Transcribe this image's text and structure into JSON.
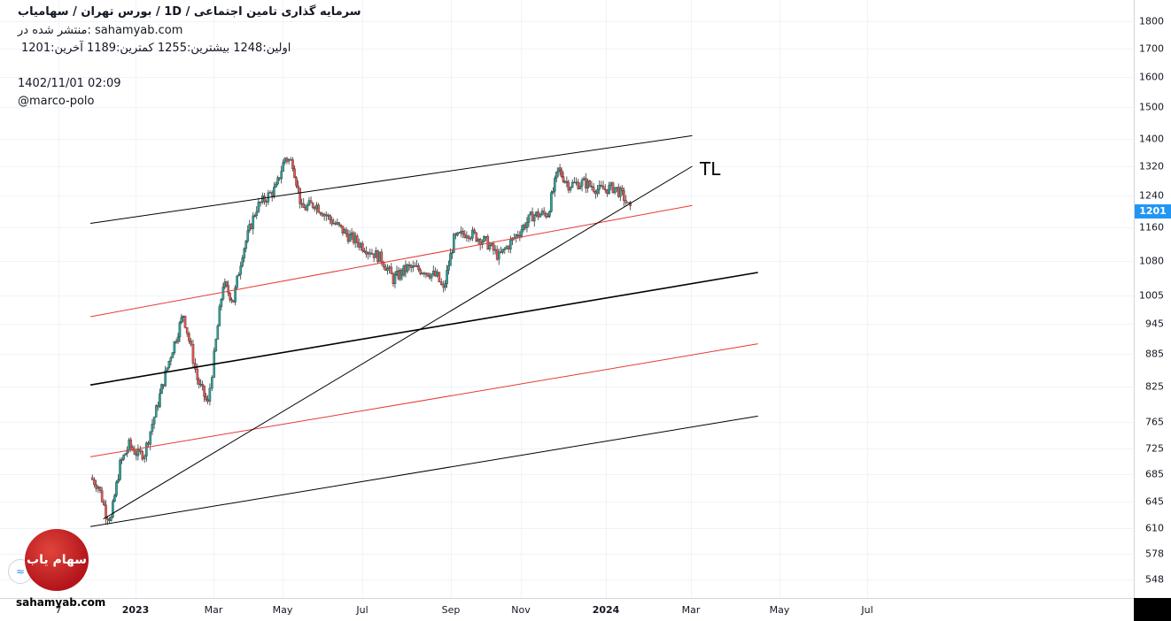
{
  "header": {
    "title": "سرمایه گذاری تامین اجتماعی /  1D  /  بورس تهران / سهامیاب",
    "source": "منتشر شده در: sahamyab.com",
    "ohlc": "اولین:1248  بیشترین:1255  کمترین:1189  آخرین:1201",
    "timestamp": "1402/11/01 02:09",
    "user": "@marco-polo"
  },
  "footer": {
    "site": "sahamyab.com",
    "logo_text": "سهام یاب",
    "logo_small_icon": "wave-icon"
  },
  "annotation": {
    "tl": "TL"
  },
  "colors": {
    "up": "#26a69a",
    "down": "#ef5350",
    "channel": "#000000",
    "mid_line": "#e53935",
    "price_tag": "#2196f3"
  },
  "chart_data": {
    "type": "candlestick",
    "title": "",
    "last_price": "1201",
    "y_ticks": [
      "1800",
      "1700",
      "1600",
      "1500",
      "1400",
      "1320",
      "1240",
      "1160",
      "1080",
      "1005",
      "945",
      "885",
      "825",
      "765",
      "725",
      "685",
      "645",
      "610",
      "578",
      "548"
    ],
    "x_ticks": [
      {
        "label": "7",
        "bold": false
      },
      {
        "label": "2023",
        "bold": true
      },
      {
        "label": "Mar",
        "bold": false
      },
      {
        "label": "May",
        "bold": false
      },
      {
        "label": "Jul",
        "bold": false
      },
      {
        "label": "Sep",
        "bold": false
      },
      {
        "label": "Nov",
        "bold": false
      },
      {
        "label": "2024",
        "bold": true
      },
      {
        "label": "Mar",
        "bold": false
      },
      {
        "label": "May",
        "bold": false
      },
      {
        "label": "Jul",
        "bold": false
      }
    ],
    "trendlines": [
      {
        "name": "channel-upper",
        "color": "black",
        "from": [
          "2022-11-27",
          1170
        ],
        "to": [
          "2024-03-08",
          1410
        ]
      },
      {
        "name": "channel-mid-red-upper",
        "color": "red",
        "from": [
          "2022-11-27",
          960
        ],
        "to": [
          "2024-03-08",
          1215
        ]
      },
      {
        "name": "channel-middle",
        "color": "black",
        "from": [
          "2022-11-27",
          828
        ],
        "to": [
          "2024-04-28",
          1055
        ]
      },
      {
        "name": "channel-mid-red-lower",
        "color": "red",
        "from": [
          "2022-11-27",
          712
        ],
        "to": [
          "2024-04-28",
          905
        ]
      },
      {
        "name": "channel-lower",
        "color": "black",
        "from": [
          "2022-11-27",
          612
        ],
        "to": [
          "2024-04-28",
          775
        ]
      },
      {
        "name": "TL",
        "color": "black",
        "from": [
          "2022-12-07",
          622
        ],
        "to": [
          "2024-03-08",
          1320
        ]
      }
    ],
    "price_path": [
      [
        "2022-11-27",
        680
      ],
      [
        "2022-12-03",
        668
      ],
      [
        "2022-12-09",
        630
      ],
      [
        "2022-12-13",
        622
      ],
      [
        "2022-12-20",
        700
      ],
      [
        "2022-12-27",
        730
      ],
      [
        "2023-01-03",
        715
      ],
      [
        "2023-01-08",
        718
      ],
      [
        "2023-01-17",
        785
      ],
      [
        "2023-01-27",
        872
      ],
      [
        "2023-02-03",
        930
      ],
      [
        "2023-02-07",
        965
      ],
      [
        "2023-02-13",
        895
      ],
      [
        "2023-02-18",
        838
      ],
      [
        "2023-02-26",
        795
      ],
      [
        "2023-03-03",
        880
      ],
      [
        "2023-03-10",
        1030
      ],
      [
        "2023-03-18",
        995
      ],
      [
        "2023-03-25",
        1100
      ],
      [
        "2023-04-05",
        1210
      ],
      [
        "2023-04-20",
        1260
      ],
      [
        "2023-04-27",
        1345
      ],
      [
        "2023-05-03",
        1330
      ],
      [
        "2023-05-10",
        1205
      ],
      [
        "2023-05-20",
        1220
      ],
      [
        "2023-06-01",
        1180
      ],
      [
        "2023-06-15",
        1140
      ],
      [
        "2023-06-29",
        1110
      ],
      [
        "2023-07-11",
        1085
      ],
      [
        "2023-07-20",
        1040
      ],
      [
        "2023-07-31",
        1065
      ],
      [
        "2023-08-13",
        1060
      ],
      [
        "2023-08-23",
        1045
      ],
      [
        "2023-08-28",
        1015
      ],
      [
        "2023-09-05",
        1130
      ],
      [
        "2023-09-15",
        1150
      ],
      [
        "2023-09-30",
        1125
      ],
      [
        "2023-10-10",
        1090
      ],
      [
        "2023-10-22",
        1135
      ],
      [
        "2023-11-05",
        1190
      ],
      [
        "2023-11-17",
        1195
      ],
      [
        "2023-11-25",
        1310
      ],
      [
        "2023-12-03",
        1270
      ],
      [
        "2023-12-15",
        1275
      ],
      [
        "2023-12-27",
        1255
      ],
      [
        "2024-01-08",
        1262
      ],
      [
        "2024-01-15",
        1235
      ],
      [
        "2024-01-20",
        1201
      ]
    ]
  }
}
